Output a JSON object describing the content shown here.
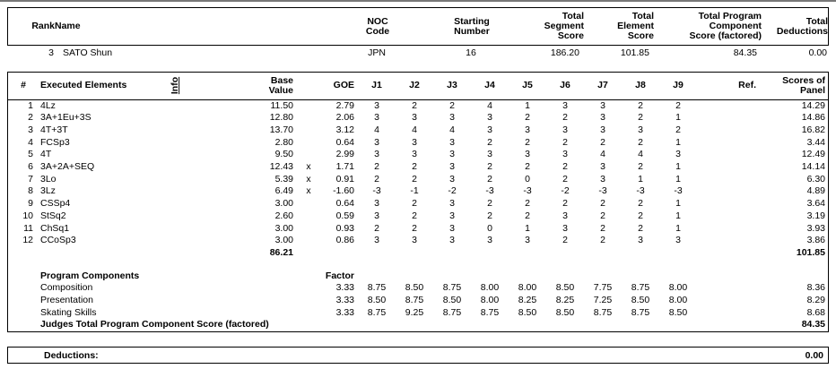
{
  "top": {
    "rank_label": "Rank",
    "name_label": "Name",
    "noc_label": "NOC\nCode",
    "starting_label": "Starting\nNumber",
    "segment_label": "Total\nSegment\nScore",
    "element_label": "Total\nElement\nScore",
    "program_label": "Total Program\nComponent\nScore (factored)",
    "deductions_label": "Total\nDeductions",
    "rank": "3",
    "name": "SATO Shun",
    "noc": "JPN",
    "starting_number": "16",
    "segment_score": "186.20",
    "element_score": "101.85",
    "program_component_score": "84.35",
    "deductions": "0.00"
  },
  "elements": {
    "num_label": "#",
    "name_label": "Executed Elements",
    "info_label": "Info",
    "base_label": "Base\nValue",
    "goe_label": "GOE",
    "judge_headers": [
      "J1",
      "J2",
      "J3",
      "J4",
      "J5",
      "J6",
      "J7",
      "J8",
      "J9"
    ],
    "ref_label": "Ref.",
    "panel_label": "Scores of\nPanel",
    "rows": [
      {
        "num": "1",
        "name": "4Lz",
        "info": "",
        "base": "11.50",
        "x": "",
        "goe": "2.79",
        "judges": [
          "3",
          "2",
          "2",
          "4",
          "1",
          "3",
          "3",
          "2",
          "2"
        ],
        "ref": "",
        "panel": "14.29"
      },
      {
        "num": "2",
        "name": "3A+1Eu+3S",
        "info": "",
        "base": "12.80",
        "x": "",
        "goe": "2.06",
        "judges": [
          "3",
          "3",
          "3",
          "3",
          "2",
          "2",
          "3",
          "2",
          "1"
        ],
        "ref": "",
        "panel": "14.86"
      },
      {
        "num": "3",
        "name": "4T+3T",
        "info": "",
        "base": "13.70",
        "x": "",
        "goe": "3.12",
        "judges": [
          "4",
          "4",
          "4",
          "3",
          "3",
          "3",
          "3",
          "3",
          "2"
        ],
        "ref": "",
        "panel": "16.82"
      },
      {
        "num": "4",
        "name": "FCSp3",
        "info": "",
        "base": "2.80",
        "x": "",
        "goe": "0.64",
        "judges": [
          "3",
          "3",
          "3",
          "2",
          "2",
          "2",
          "2",
          "2",
          "1"
        ],
        "ref": "",
        "panel": "3.44"
      },
      {
        "num": "5",
        "name": "4T",
        "info": "",
        "base": "9.50",
        "x": "",
        "goe": "2.99",
        "judges": [
          "3",
          "3",
          "3",
          "3",
          "3",
          "3",
          "4",
          "4",
          "3"
        ],
        "ref": "",
        "panel": "12.49"
      },
      {
        "num": "6",
        "name": "3A+2A+SEQ",
        "info": "",
        "base": "12.43",
        "x": "x",
        "goe": "1.71",
        "judges": [
          "2",
          "2",
          "3",
          "2",
          "2",
          "2",
          "3",
          "2",
          "1"
        ],
        "ref": "",
        "panel": "14.14"
      },
      {
        "num": "7",
        "name": "3Lo",
        "info": "",
        "base": "5.39",
        "x": "x",
        "goe": "0.91",
        "judges": [
          "2",
          "2",
          "3",
          "2",
          "0",
          "2",
          "3",
          "1",
          "1"
        ],
        "ref": "",
        "panel": "6.30"
      },
      {
        "num": "8",
        "name": "3Lz",
        "info": "",
        "base": "6.49",
        "x": "x",
        "goe": "-1.60",
        "judges": [
          "-3",
          "-1",
          "-2",
          "-3",
          "-3",
          "-2",
          "-3",
          "-3",
          "-3"
        ],
        "ref": "",
        "panel": "4.89"
      },
      {
        "num": "9",
        "name": "CSSp4",
        "info": "",
        "base": "3.00",
        "x": "",
        "goe": "0.64",
        "judges": [
          "3",
          "2",
          "3",
          "2",
          "2",
          "2",
          "2",
          "2",
          "1"
        ],
        "ref": "",
        "panel": "3.64"
      },
      {
        "num": "10",
        "name": "StSq2",
        "info": "",
        "base": "2.60",
        "x": "",
        "goe": "0.59",
        "judges": [
          "3",
          "2",
          "3",
          "2",
          "2",
          "3",
          "2",
          "2",
          "1"
        ],
        "ref": "",
        "panel": "3.19"
      },
      {
        "num": "11",
        "name": "ChSq1",
        "info": "",
        "base": "3.00",
        "x": "",
        "goe": "0.93",
        "judges": [
          "2",
          "2",
          "3",
          "0",
          "1",
          "3",
          "2",
          "2",
          "1"
        ],
        "ref": "",
        "panel": "3.93"
      },
      {
        "num": "12",
        "name": "CCoSp3",
        "info": "",
        "base": "3.00",
        "x": "",
        "goe": "0.86",
        "judges": [
          "3",
          "3",
          "3",
          "3",
          "3",
          "2",
          "2",
          "3",
          "3"
        ],
        "ref": "",
        "panel": "3.86"
      }
    ],
    "total_base": "86.21",
    "total_panel": "101.85"
  },
  "components": {
    "title": "Program Components",
    "factor_label": "Factor",
    "rows": [
      {
        "name": "Composition",
        "factor": "3.33",
        "judges": [
          "8.75",
          "8.50",
          "8.75",
          "8.00",
          "8.00",
          "8.50",
          "7.75",
          "8.75",
          "8.00"
        ],
        "score": "8.36"
      },
      {
        "name": "Presentation",
        "factor": "3.33",
        "judges": [
          "8.50",
          "8.75",
          "8.50",
          "8.00",
          "8.25",
          "8.25",
          "7.25",
          "8.50",
          "8.00"
        ],
        "score": "8.29"
      },
      {
        "name": "Skating Skills",
        "factor": "3.33",
        "judges": [
          "8.75",
          "9.25",
          "8.75",
          "8.75",
          "8.50",
          "8.50",
          "8.75",
          "8.75",
          "8.50"
        ],
        "score": "8.68"
      }
    ],
    "total_label": "Judges Total Program Component Score (factored)",
    "total_value": "84.35"
  },
  "deductions": {
    "label": "Deductions:",
    "value": "0.00"
  }
}
